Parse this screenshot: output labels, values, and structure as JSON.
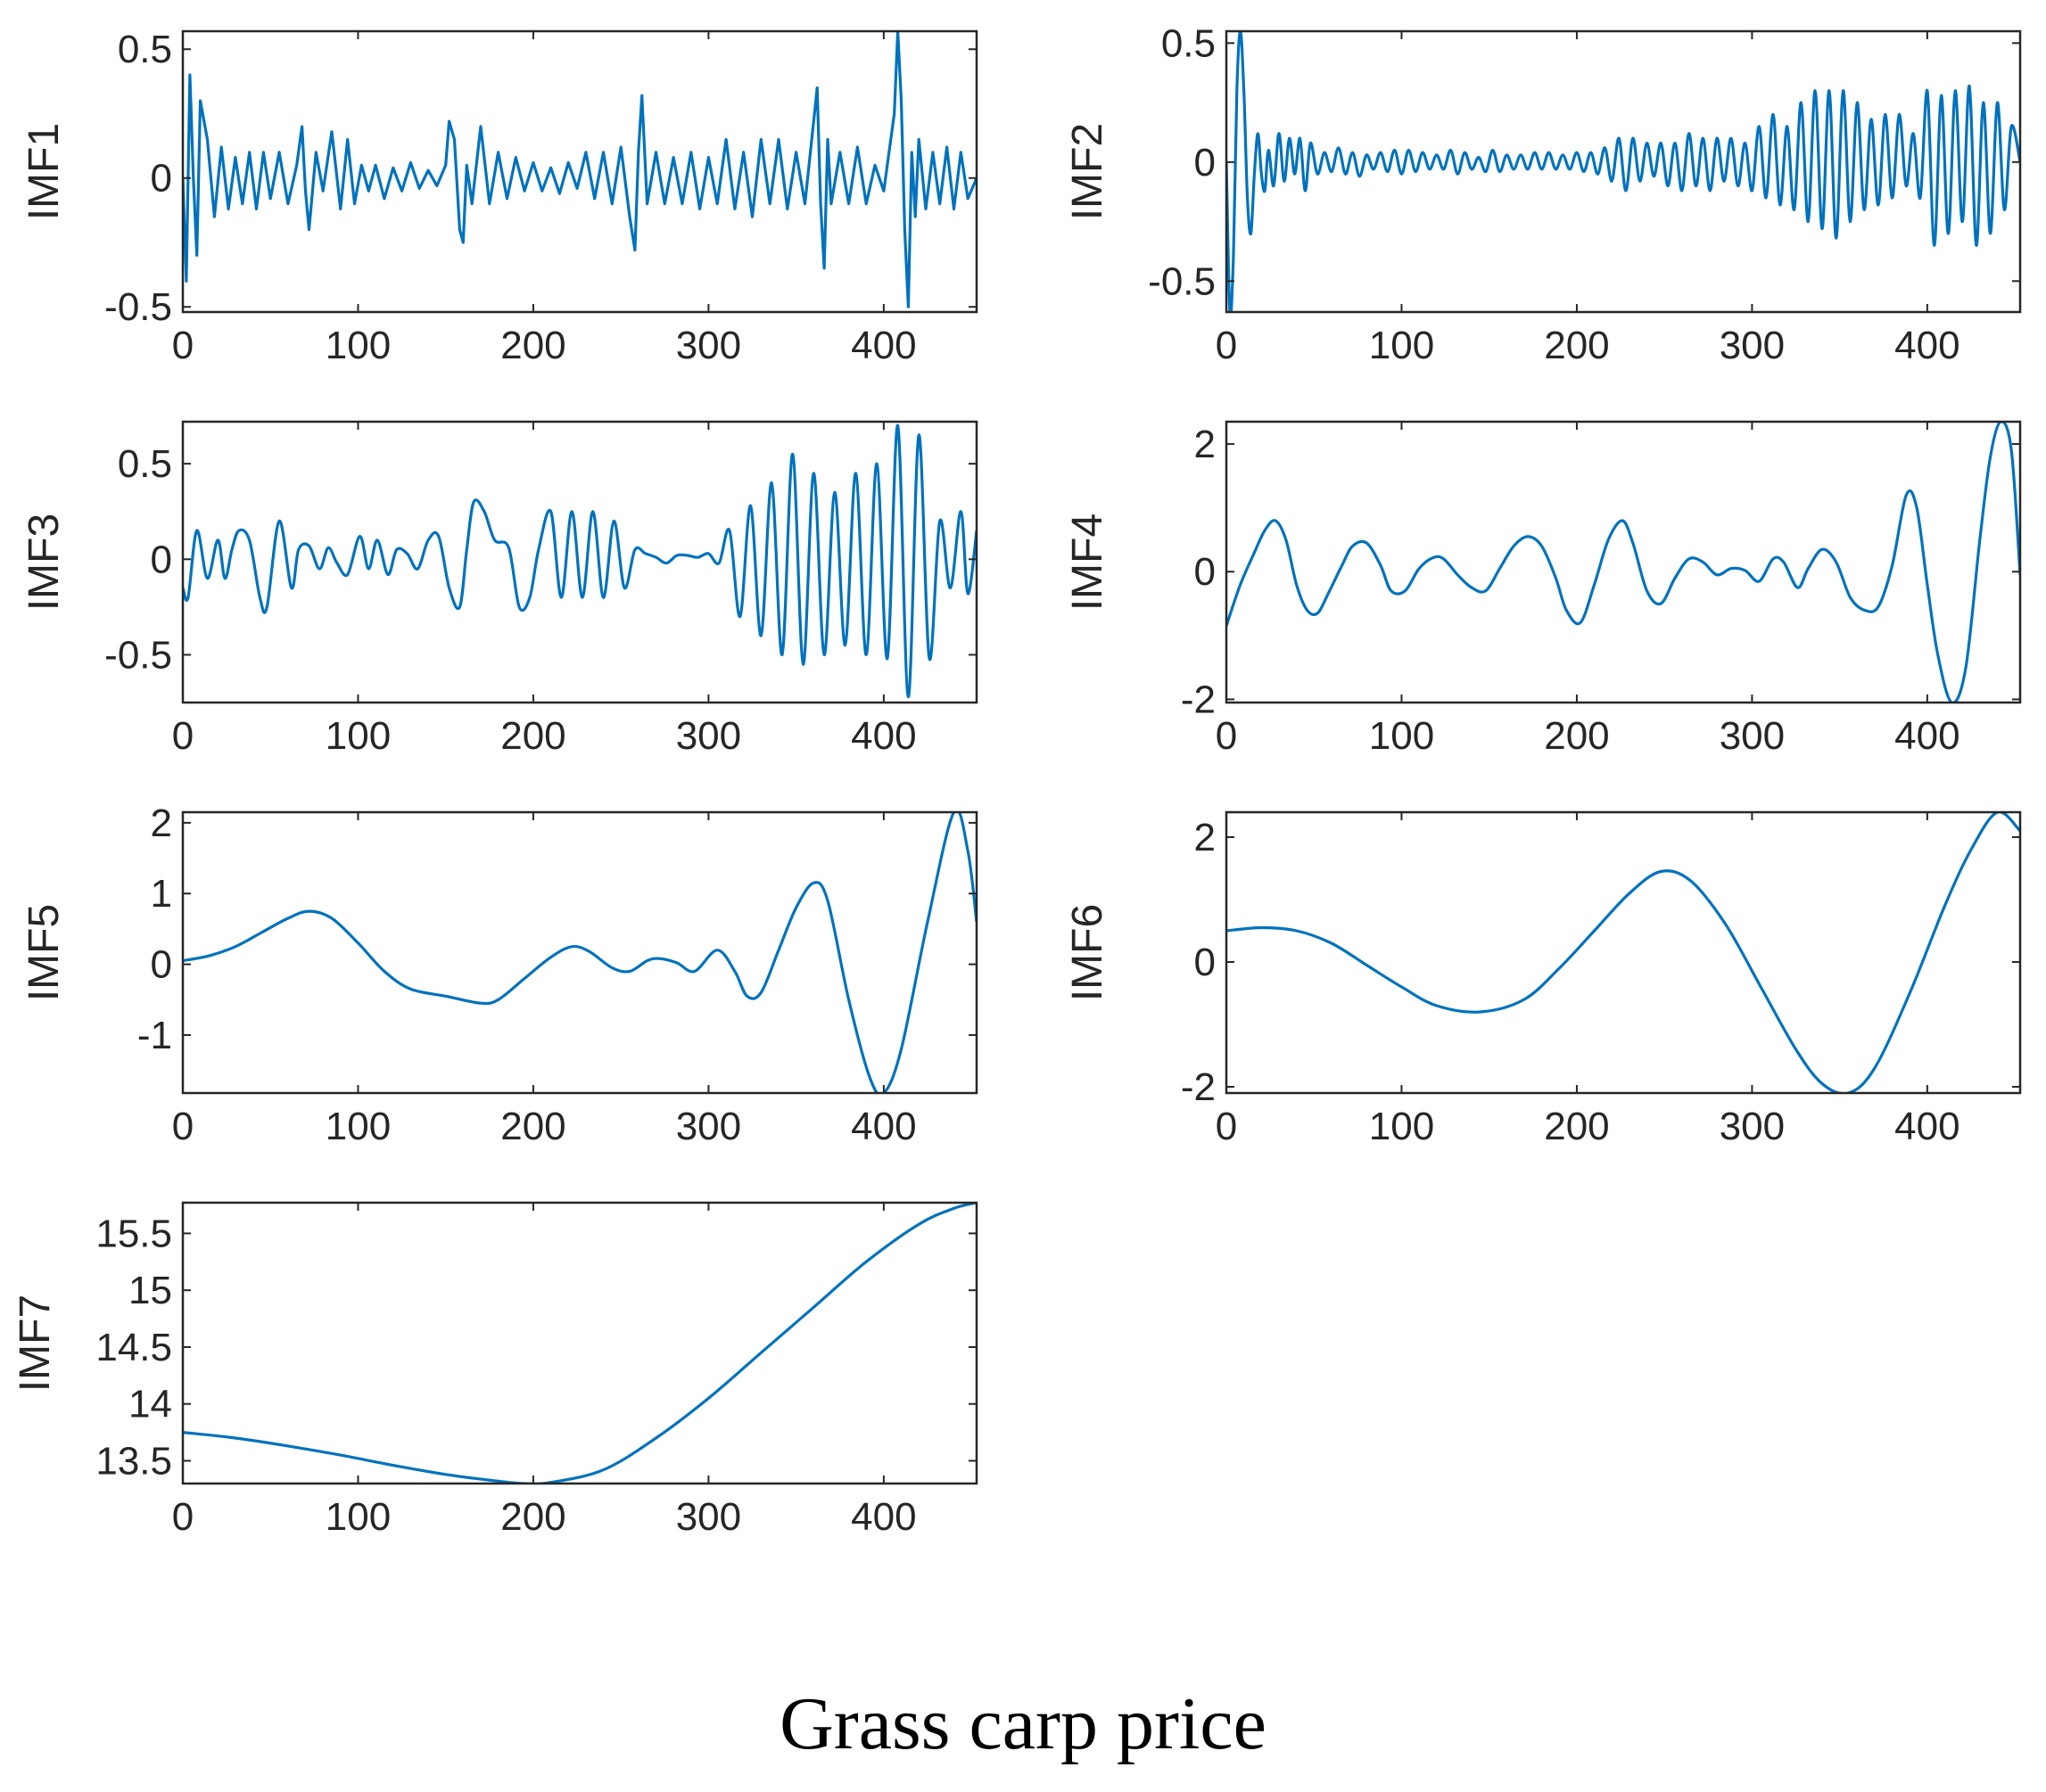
{
  "figure_caption": "Grass carp price",
  "line_color": "#0072BD",
  "chart_data": [
    {
      "type": "line",
      "ylabel": "IMF1",
      "xlim": [
        0,
        453
      ],
      "ylim": [
        -0.52,
        0.57
      ],
      "xticks": [
        0,
        100,
        200,
        300,
        400
      ],
      "yticks": [
        -0.5,
        0,
        0.5
      ],
      "ytick_labels": [
        "-0.5",
        "0",
        "0.5"
      ],
      "x": [
        0,
        2,
        4,
        6,
        8,
        10,
        14,
        18,
        22,
        26,
        30,
        34,
        38,
        42,
        46,
        50,
        55,
        60,
        65,
        68,
        70,
        72,
        76,
        80,
        85,
        90,
        94,
        98,
        102,
        106,
        110,
        115,
        120,
        125,
        130,
        135,
        140,
        145,
        150,
        152,
        155,
        158,
        160,
        162,
        165,
        170,
        175,
        180,
        185,
        190,
        195,
        200,
        205,
        210,
        215,
        220,
        225,
        230,
        235,
        240,
        245,
        250,
        255,
        258,
        260,
        262,
        265,
        270,
        275,
        280,
        285,
        290,
        295,
        300,
        305,
        310,
        315,
        320,
        325,
        330,
        335,
        340,
        345,
        350,
        355,
        360,
        362,
        364,
        366,
        368,
        370,
        375,
        380,
        385,
        390,
        395,
        400,
        403,
        406,
        408,
        410,
        412,
        414,
        416,
        418,
        420,
        424,
        428,
        432,
        436,
        440,
        444,
        448,
        453
      ],
      "values": [
        0,
        -0.4,
        0.4,
        0,
        -0.3,
        0.3,
        0.15,
        -0.15,
        0.12,
        -0.12,
        0.08,
        -0.1,
        0.1,
        -0.12,
        0.1,
        -0.08,
        0.1,
        -0.1,
        0.05,
        0.2,
        -0.05,
        -0.2,
        0.1,
        -0.05,
        0.18,
        -0.12,
        0.15,
        -0.1,
        0.05,
        -0.05,
        0.05,
        -0.08,
        0.04,
        -0.05,
        0.06,
        -0.04,
        0.03,
        -0.03,
        0.05,
        0.22,
        0.15,
        -0.2,
        -0.25,
        0.05,
        -0.1,
        0.2,
        -0.1,
        0.1,
        -0.08,
        0.08,
        -0.05,
        0.06,
        -0.05,
        0.04,
        -0.06,
        0.06,
        -0.04,
        0.1,
        -0.08,
        0.1,
        -0.1,
        0.12,
        -0.15,
        -0.28,
        0.1,
        0.32,
        -0.1,
        0.1,
        -0.1,
        0.08,
        -0.1,
        0.1,
        -0.12,
        0.08,
        -0.1,
        0.15,
        -0.12,
        0.1,
        -0.15,
        0.15,
        -0.1,
        0.15,
        -0.12,
        0.1,
        -0.1,
        0.22,
        0.35,
        -0.1,
        -0.35,
        0.15,
        -0.1,
        0.1,
        -0.1,
        0.12,
        -0.1,
        0.05,
        -0.05,
        0.1,
        0.25,
        0.57,
        0.3,
        -0.2,
        -0.5,
        0.1,
        -0.15,
        0.15,
        -0.12,
        0.1,
        -0.1,
        0.12,
        -0.12,
        0.1,
        -0.08,
        0
      ],
      "smooth": false,
      "width": 3.2
    },
    {
      "type": "line",
      "ylabel": "IMF2",
      "xlim": [
        0,
        453
      ],
      "ylim": [
        -0.63,
        0.55
      ],
      "xticks": [
        0,
        100,
        200,
        300,
        400
      ],
      "yticks": [
        -0.5,
        0,
        0.5
      ],
      "ytick_labels": [
        "-0.5",
        "0",
        "0.5"
      ],
      "x": [
        0,
        2,
        4,
        6,
        8,
        10,
        12,
        14,
        16,
        18,
        20,
        22,
        24,
        27,
        30,
        33,
        36,
        39,
        42,
        45,
        48,
        52,
        56,
        60,
        64,
        68,
        72,
        76,
        80,
        84,
        88,
        92,
        96,
        100,
        104,
        108,
        112,
        116,
        120,
        124,
        128,
        132,
        136,
        140,
        144,
        148,
        152,
        156,
        160,
        164,
        168,
        172,
        176,
        180,
        184,
        188,
        192,
        196,
        200,
        204,
        208,
        212,
        216,
        220,
        224,
        228,
        232,
        236,
        240,
        244,
        248,
        252,
        256,
        260,
        264,
        268,
        272,
        276,
        280,
        284,
        288,
        292,
        296,
        300,
        304,
        308,
        312,
        316,
        320,
        324,
        328,
        332,
        336,
        340,
        344,
        348,
        352,
        356,
        360,
        364,
        368,
        372,
        376,
        380,
        384,
        388,
        392,
        396,
        400,
        404,
        408,
        412,
        416,
        420,
        424,
        428,
        432,
        436,
        440,
        444,
        448,
        453
      ],
      "values": [
        0,
        -0.63,
        -0.4,
        0.3,
        0.55,
        0.3,
        -0.15,
        -0.3,
        -0.05,
        0.12,
        -0.05,
        -0.12,
        0.05,
        -0.1,
        0.12,
        -0.08,
        0.1,
        -0.05,
        0.1,
        -0.12,
        0.08,
        -0.05,
        0.04,
        -0.04,
        0.06,
        -0.05,
        0.04,
        -0.06,
        0.03,
        -0.03,
        0.04,
        -0.04,
        0.05,
        -0.05,
        0.05,
        -0.04,
        0.04,
        -0.03,
        0.03,
        -0.03,
        0.05,
        -0.05,
        0.04,
        -0.03,
        0.02,
        -0.04,
        0.05,
        -0.04,
        0.03,
        -0.03,
        0.03,
        -0.03,
        0.04,
        -0.03,
        0.04,
        -0.03,
        0.03,
        -0.03,
        0.04,
        -0.04,
        0.04,
        -0.05,
        0.06,
        -0.08,
        0.1,
        -0.12,
        0.1,
        -0.08,
        0.08,
        -0.06,
        0.08,
        -0.1,
        0.08,
        -0.12,
        0.12,
        -0.1,
        0.1,
        -0.12,
        0.1,
        -0.08,
        0.1,
        -0.1,
        0.08,
        -0.12,
        0.15,
        -0.15,
        0.2,
        -0.18,
        0.15,
        -0.2,
        0.25,
        -0.25,
        0.3,
        -0.28,
        0.3,
        -0.32,
        0.3,
        -0.25,
        0.25,
        -0.2,
        0.18,
        -0.18,
        0.2,
        -0.15,
        0.2,
        -0.1,
        0.12,
        -0.15,
        0.3,
        -0.35,
        0.28,
        -0.3,
        0.3,
        -0.25,
        0.32,
        -0.35,
        0.25,
        -0.3,
        0.25,
        -0.2,
        0.15,
        0
      ],
      "smooth": true,
      "width": 3.2
    },
    {
      "type": "line",
      "ylabel": "IMF3",
      "xlim": [
        0,
        453
      ],
      "ylim": [
        -0.75,
        0.72
      ],
      "xticks": [
        0,
        100,
        200,
        300,
        400
      ],
      "yticks": [
        -0.5,
        0,
        0.5
      ],
      "ytick_labels": [
        "-0.5",
        "0",
        "0.5"
      ],
      "x": [
        0,
        3,
        8,
        14,
        20,
        24,
        28,
        32,
        38,
        44,
        48,
        55,
        62,
        66,
        72,
        78,
        83,
        88,
        94,
        101,
        106,
        111,
        117,
        122,
        128,
        134,
        140,
        146,
        152,
        158,
        162,
        166,
        172,
        178,
        186,
        192,
        198,
        203,
        210,
        216,
        222,
        228,
        234,
        240,
        246,
        252,
        258,
        264,
        270,
        276,
        282,
        288,
        294,
        300,
        306,
        312,
        318,
        324,
        330,
        336,
        342,
        348,
        354,
        360,
        366,
        372,
        378,
        384,
        390,
        396,
        402,
        408,
        414,
        420,
        426,
        432,
        438,
        444,
        448,
        453
      ],
      "values": [
        -0.15,
        -0.2,
        0.15,
        -0.1,
        0.1,
        -0.1,
        0.05,
        0.15,
        0.1,
        -0.2,
        -0.25,
        0.2,
        -0.15,
        0.05,
        0.07,
        -0.05,
        0.06,
        -0.02,
        -0.08,
        0.12,
        -0.05,
        0.1,
        -0.08,
        0.05,
        0.03,
        -0.05,
        0.1,
        0.12,
        -0.15,
        -0.25,
        0.05,
        0.3,
        0.25,
        0.1,
        0.06,
        -0.25,
        -0.2,
        0.05,
        0.25,
        -0.2,
        0.25,
        -0.2,
        0.25,
        -0.2,
        0.2,
        -0.15,
        0.05,
        0.03,
        0.01,
        -0.02,
        0.02,
        0.02,
        0.01,
        0.03,
        -0.02,
        0.15,
        -0.3,
        0.28,
        -0.4,
        0.4,
        -0.5,
        0.55,
        -0.55,
        0.45,
        -0.5,
        0.35,
        -0.45,
        0.45,
        -0.5,
        0.5,
        -0.52,
        0.7,
        -0.72,
        0.65,
        -0.52,
        0.2,
        -0.15,
        0.25,
        -0.18,
        0.15
      ],
      "smooth": true,
      "width": 3.2
    },
    {
      "type": "line",
      "ylabel": "IMF4",
      "xlim": [
        0,
        453
      ],
      "ylim": [
        -2.05,
        2.35
      ],
      "xticks": [
        0,
        100,
        200,
        300,
        400
      ],
      "yticks": [
        -2,
        0,
        2
      ],
      "ytick_labels": [
        "-2",
        "0",
        "2"
      ],
      "x": [
        0,
        8,
        16,
        22,
        28,
        34,
        40,
        46,
        52,
        58,
        66,
        72,
        80,
        88,
        94,
        102,
        110,
        118,
        124,
        132,
        140,
        148,
        156,
        164,
        172,
        180,
        188,
        194,
        202,
        210,
        218,
        226,
        232,
        240,
        248,
        256,
        264,
        272,
        280,
        288,
        296,
        304,
        312,
        318,
        326,
        332,
        340,
        348,
        356,
        364,
        372,
        380,
        388,
        394,
        400,
        406,
        414,
        422,
        430,
        436,
        442,
        448,
        453
      ],
      "values": [
        -0.85,
        -0.2,
        0.3,
        0.65,
        0.8,
        0.5,
        -0.2,
        -0.6,
        -0.65,
        -0.35,
        0.1,
        0.4,
        0.45,
        0.1,
        -0.3,
        -0.3,
        0.05,
        0.22,
        0.2,
        -0.05,
        -0.25,
        -0.3,
        0.05,
        0.4,
        0.55,
        0.4,
        -0.1,
        -0.6,
        -0.8,
        -0.2,
        0.5,
        0.8,
        0.45,
        -0.3,
        -0.5,
        -0.1,
        0.2,
        0.15,
        -0.05,
        0.05,
        0.02,
        -0.15,
        0.2,
        0.15,
        -0.25,
        0.05,
        0.35,
        0.15,
        -0.4,
        -0.6,
        -0.55,
        0.1,
        1.2,
        1.0,
        -0.2,
        -1.3,
        -2.05,
        -1.5,
        0.5,
        1.8,
        2.35,
        1.9,
        -0.05
      ],
      "smooth": true,
      "width": 3.2
    },
    {
      "type": "line",
      "ylabel": "IMF5",
      "xlim": [
        0,
        453
      ],
      "ylim": [
        -1.82,
        2.15
      ],
      "xticks": [
        0,
        100,
        200,
        300,
        400
      ],
      "yticks": [
        -1,
        0,
        1,
        2
      ],
      "ytick_labels": [
        "-1",
        "0",
        "1",
        "2"
      ],
      "x": [
        0,
        15,
        30,
        45,
        60,
        72,
        85,
        100,
        115,
        130,
        150,
        170,
        180,
        195,
        210,
        222,
        232,
        245,
        255,
        265,
        272,
        282,
        292,
        305,
        315,
        322,
        330,
        340,
        350,
        360,
        368,
        380,
        392,
        400,
        410,
        425,
        440,
        448,
        453
      ],
      "values": [
        0.05,
        0.12,
        0.25,
        0.45,
        0.65,
        0.75,
        0.65,
        0.3,
        -0.1,
        -0.35,
        -0.45,
        -0.55,
        -0.5,
        -0.2,
        0.1,
        0.25,
        0.18,
        -0.05,
        -0.1,
        0.05,
        0.08,
        0.02,
        -0.1,
        0.2,
        -0.1,
        -0.45,
        -0.4,
        0.2,
        0.8,
        1.15,
        0.9,
        -0.5,
        -1.6,
        -1.82,
        -1.2,
        0.6,
        2.15,
        1.6,
        0.6
      ],
      "smooth": true,
      "width": 3.2
    },
    {
      "type": "line",
      "ylabel": "IMF6",
      "xlim": [
        0,
        453
      ],
      "ylim": [
        -2.1,
        2.4
      ],
      "xticks": [
        0,
        100,
        200,
        300,
        400
      ],
      "yticks": [
        -2,
        0,
        2
      ],
      "ytick_labels": [
        "-2",
        "0",
        "2"
      ],
      "x": [
        0,
        20,
        40,
        60,
        80,
        100,
        120,
        145,
        170,
        190,
        210,
        230,
        248,
        265,
        285,
        305,
        325,
        340,
        355,
        370,
        390,
        410,
        425,
        440,
        453
      ],
      "values": [
        0.5,
        0.55,
        0.5,
        0.3,
        -0.05,
        -0.4,
        -0.7,
        -0.8,
        -0.6,
        -0.1,
        0.5,
        1.1,
        1.45,
        1.3,
        0.6,
        -0.4,
        -1.4,
        -1.95,
        -2.1,
        -1.7,
        -0.5,
        0.9,
        1.8,
        2.4,
        2.1
      ],
      "smooth": true,
      "width": 3.2
    },
    {
      "type": "line",
      "ylabel": "IMF7",
      "xlim": [
        0,
        453
      ],
      "ylim": [
        13.3,
        15.77
      ],
      "xticks": [
        0,
        100,
        200,
        300,
        400
      ],
      "yticks": [
        13.5,
        14,
        14.5,
        15,
        15.5
      ],
      "ytick_labels": [
        "13.5",
        "14",
        "14.5",
        "15",
        "15.5"
      ],
      "x": [
        0,
        30,
        60,
        90,
        120,
        150,
        180,
        195,
        210,
        240,
        270,
        300,
        330,
        360,
        390,
        420,
        440,
        453
      ],
      "values": [
        13.75,
        13.7,
        13.63,
        13.55,
        13.46,
        13.38,
        13.32,
        13.3,
        13.31,
        13.42,
        13.7,
        14.05,
        14.45,
        14.85,
        15.25,
        15.58,
        15.72,
        15.77
      ],
      "smooth": true,
      "width": 3.2
    }
  ]
}
